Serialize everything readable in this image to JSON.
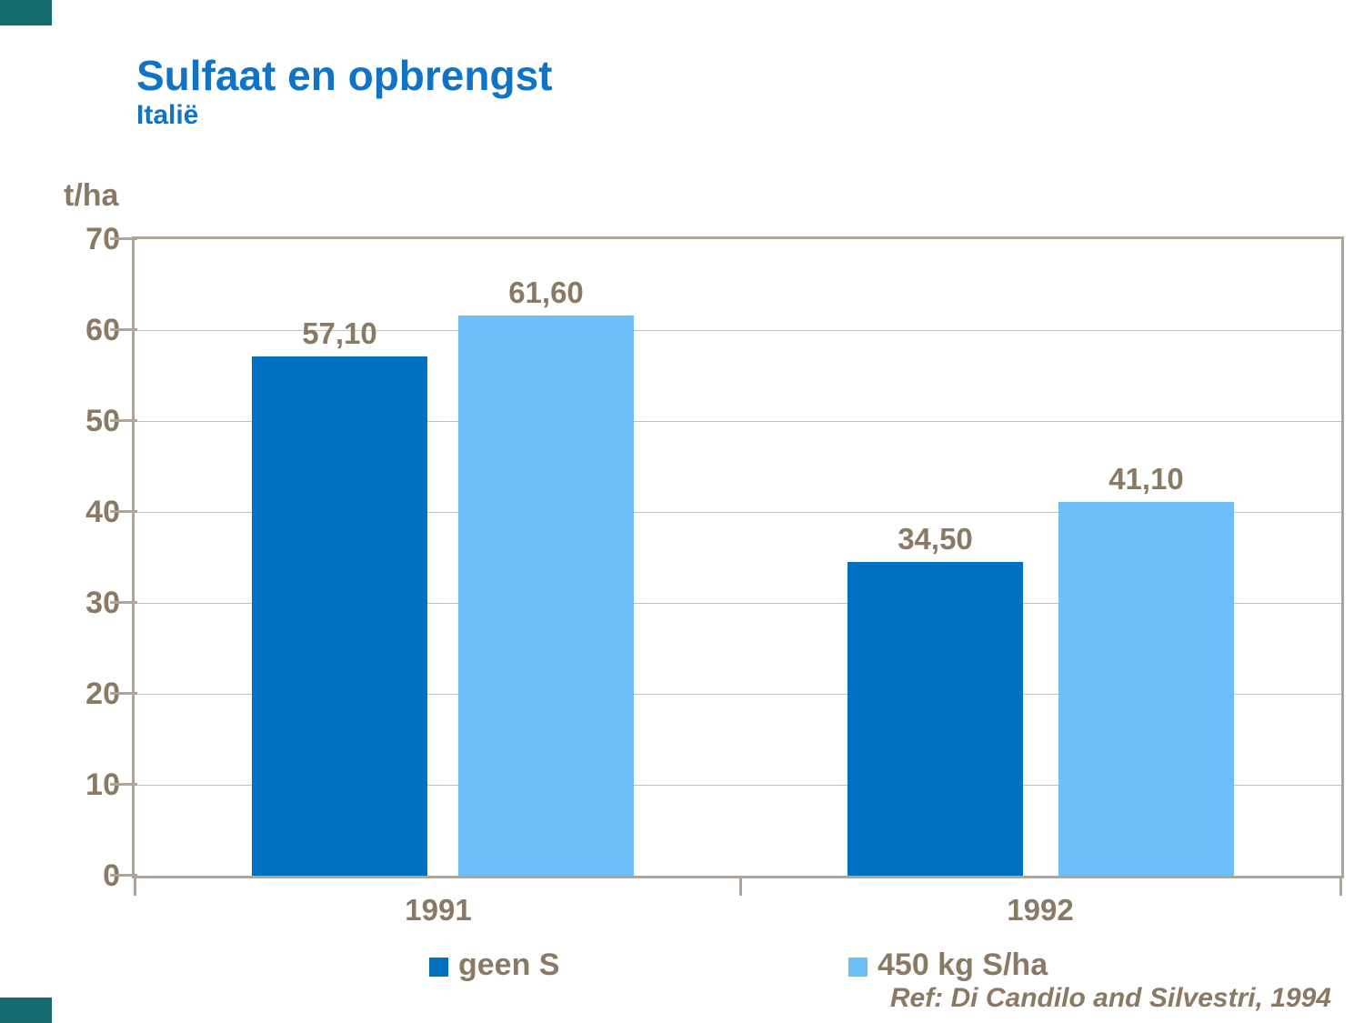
{
  "header": {
    "title": "Sulfaat en opbrengst",
    "subtitle": "Italië",
    "title_color": "#1173c5"
  },
  "accents": {
    "corner_color": "#156a6e"
  },
  "footer": {
    "reference": "Ref: Di Candilo and Silvestri, 1994"
  },
  "chart_data": {
    "type": "bar",
    "title": "Sulfaat en opbrengst",
    "subtitle": "Italië",
    "ylabel": "t/ha",
    "xlabel": "",
    "ylim": [
      0,
      70
    ],
    "ytick_step": 10,
    "yticks": [
      70,
      60,
      50,
      40,
      30,
      20,
      10,
      0
    ],
    "grid": true,
    "legend_position": "bottom",
    "categories": [
      "1991",
      "1992"
    ],
    "series": [
      {
        "name": "geen S",
        "color": "#0070c0",
        "values": [
          57.1,
          34.5
        ],
        "labels": [
          "57,10",
          "34,50"
        ]
      },
      {
        "name": "450 kg S/ha",
        "color": "#6cc0f7",
        "values": [
          61.6,
          41.1
        ],
        "labels": [
          "61,60",
          "41,10"
        ]
      }
    ],
    "text_color": "#8a7964",
    "value_label_color": "#8a7964",
    "axis_color": "#b0a497",
    "gridline_color": "#c9c0b4"
  }
}
